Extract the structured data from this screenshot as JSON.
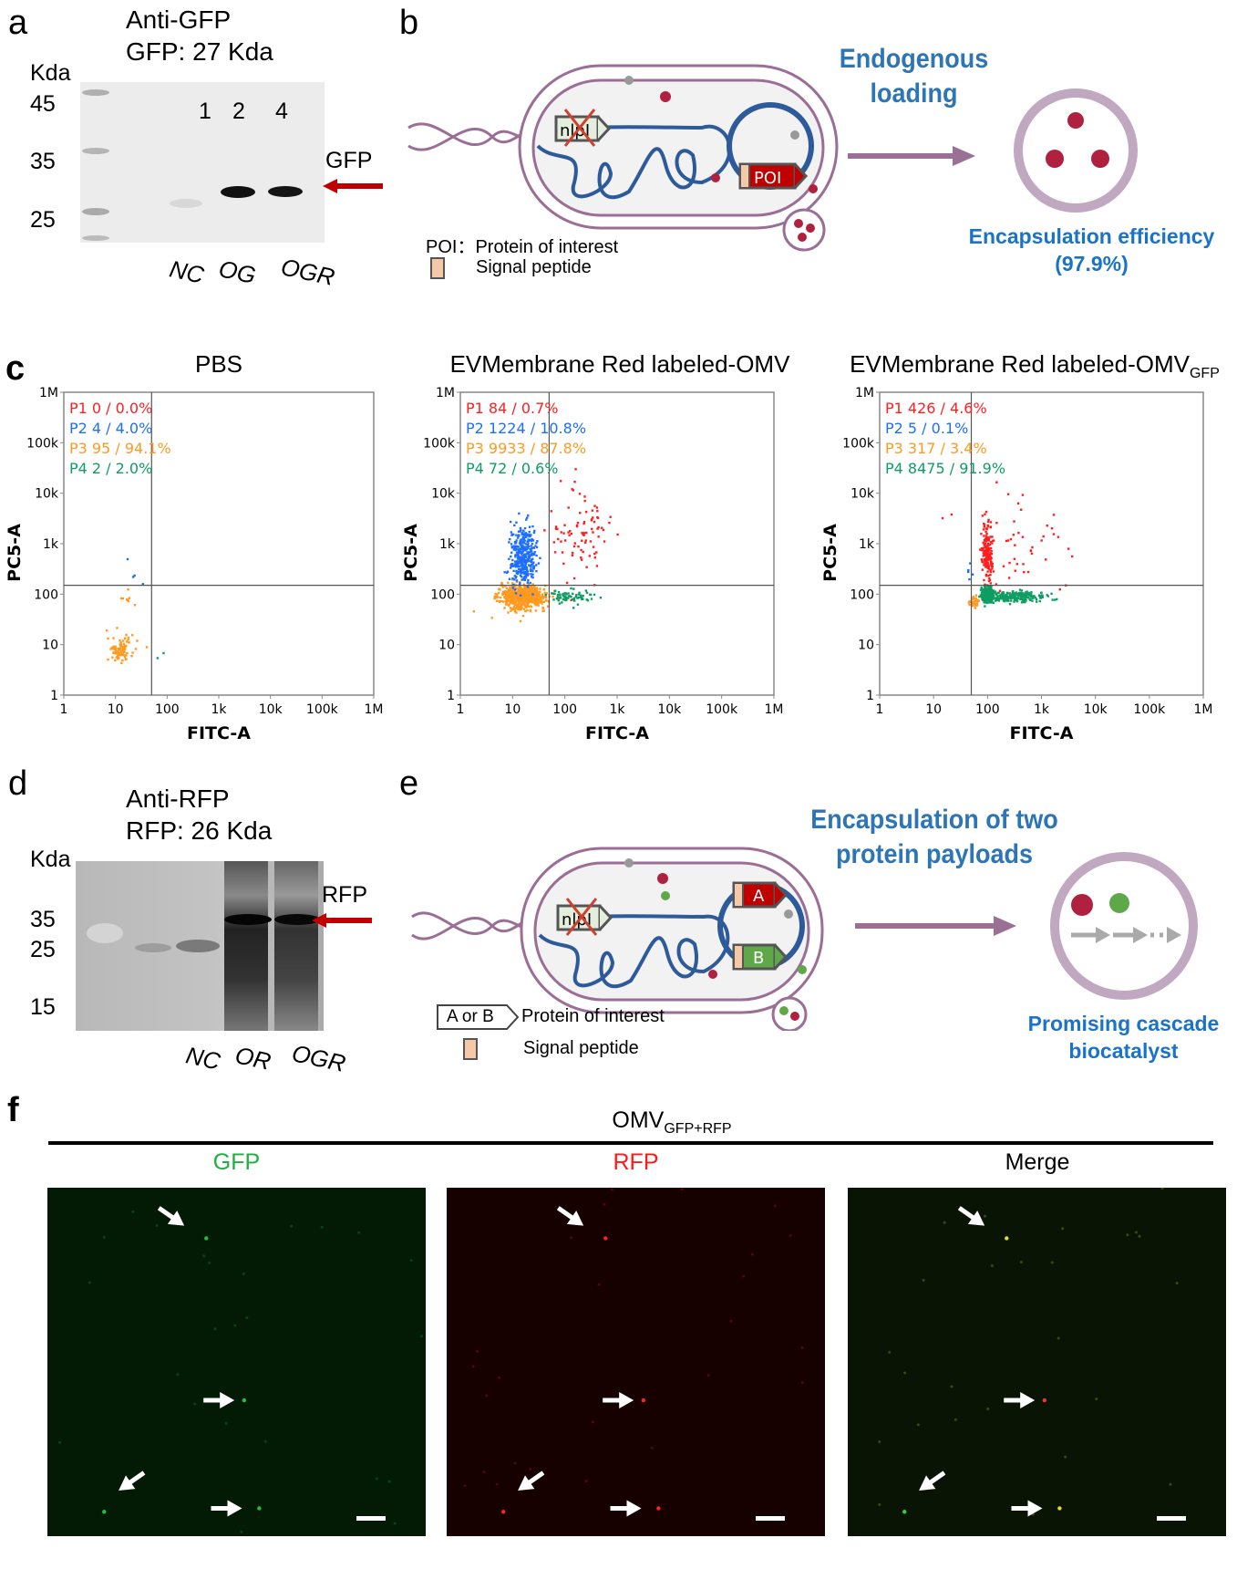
{
  "panel_a": {
    "label": "a",
    "title": "Anti-GFP",
    "subtitle": "GFP: 27 Kda",
    "kda_label": "Kda",
    "markers": [
      "45",
      "35",
      "25"
    ],
    "lane_numbers": [
      "1",
      "2",
      "4"
    ],
    "lanes": [
      "NC",
      "OG",
      "OGR"
    ],
    "band_label": "GFP",
    "arrow_color": "#c00000"
  },
  "panel_b": {
    "label": "b",
    "heading": "Endogenous loading",
    "gene_deleted": "nlpI",
    "poi_tag": "POI",
    "legend_poi": "POI：Protein of interest",
    "legend_signal": "Signal peptide",
    "result_title": "Encapsulation efficiency",
    "result_value": "(97.9%)"
  },
  "panel_c": {
    "label": "c"
  },
  "chart_data": [
    {
      "type": "scatter",
      "title": "PBS",
      "xlabel": "FITC-A",
      "ylabel": "PC5-A",
      "xscale": "log",
      "yscale": "log",
      "xlim": [
        1,
        1000000
      ],
      "ylim": [
        1,
        1000000
      ],
      "xticks": [
        "1",
        "10",
        "100",
        "1k",
        "10k",
        "100k",
        "1M"
      ],
      "yticks": [
        "1",
        "10",
        "100",
        "1k",
        "10k",
        "100k",
        "1M"
      ],
      "gate": {
        "x": 50,
        "y": 150
      },
      "gates": [
        {
          "name": "P1",
          "count": "0",
          "percent": "0.0%",
          "color": "#ff1f1f"
        },
        {
          "name": "P2",
          "count": "4",
          "percent": "4.0%",
          "color": "#1f6fff"
        },
        {
          "name": "P3",
          "count": "95",
          "percent": "94.1%",
          "color": "#ff9a1f"
        },
        {
          "name": "P4",
          "count": "2",
          "percent": "2.0%",
          "color": "#0f9d63"
        }
      ]
    },
    {
      "type": "scatter",
      "title": "EVMembrane Red labeled-OMV",
      "title_sub": "",
      "xlabel": "FITC-A",
      "ylabel": "PC5-A",
      "xscale": "log",
      "yscale": "log",
      "xlim": [
        1,
        1000000
      ],
      "ylim": [
        1,
        1000000
      ],
      "xticks": [
        "1",
        "10",
        "100",
        "1k",
        "10k",
        "100k",
        "1M"
      ],
      "yticks": [
        "1",
        "10",
        "100",
        "1k",
        "10k",
        "100k",
        "1M"
      ],
      "gate": {
        "x": 50,
        "y": 150
      },
      "gates": [
        {
          "name": "P1",
          "count": "84",
          "percent": "0.7%",
          "color": "#ff1f1f"
        },
        {
          "name": "P2",
          "count": "1224",
          "percent": "10.8%",
          "color": "#1f6fff"
        },
        {
          "name": "P3",
          "count": "9933",
          "percent": "87.8%",
          "color": "#ff9a1f"
        },
        {
          "name": "P4",
          "count": "72",
          "percent": "0.6%",
          "color": "#0f9d63"
        }
      ]
    },
    {
      "type": "scatter",
      "title": "EVMembrane Red labeled-OMV",
      "title_sub": "GFP",
      "xlabel": "FITC-A",
      "ylabel": "PC5-A",
      "xscale": "log",
      "yscale": "log",
      "xlim": [
        1,
        1000000
      ],
      "ylim": [
        1,
        1000000
      ],
      "xticks": [
        "1",
        "10",
        "100",
        "1k",
        "10k",
        "100k",
        "1M"
      ],
      "yticks": [
        "1",
        "10",
        "100",
        "1k",
        "10k",
        "100k",
        "1M"
      ],
      "gate": {
        "x": 50,
        "y": 150
      },
      "gates": [
        {
          "name": "P1",
          "count": "426",
          "percent": "4.6%",
          "color": "#ff1f1f"
        },
        {
          "name": "P2",
          "count": "5",
          "percent": "0.1%",
          "color": "#1f6fff"
        },
        {
          "name": "P3",
          "count": "317",
          "percent": "3.4%",
          "color": "#ff9a1f"
        },
        {
          "name": "P4",
          "count": "8475",
          "percent": "91.9%",
          "color": "#0f9d63"
        }
      ]
    }
  ],
  "panel_d": {
    "label": "d",
    "title": "Anti-RFP",
    "subtitle": "RFP: 26 Kda",
    "kda_label": "Kda",
    "markers": [
      "35",
      "25",
      "15"
    ],
    "lanes": [
      "NC",
      "OR",
      "OGR"
    ],
    "band_label": "RFP"
  },
  "panel_e": {
    "label": "e",
    "heading": "Encapsulation of two protein payloads",
    "gene_deleted": "nlpI",
    "tag_a": "A",
    "tag_b": "B",
    "legend_box": "A or B",
    "legend_poi": "Protein of interest",
    "legend_signal": "Signal peptide",
    "result_title": "Promising cascade",
    "result_title2": "biocatalyst"
  },
  "panel_f": {
    "label": "f",
    "group_title": "OMV",
    "group_sub": "GFP+RFP",
    "channels": [
      {
        "label": "GFP",
        "color": "#1fb040"
      },
      {
        "label": "RFP",
        "color": "#ff1a1a"
      },
      {
        "label": "Merge",
        "color": "#000000"
      }
    ]
  }
}
